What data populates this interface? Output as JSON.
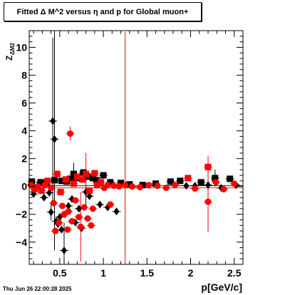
{
  "header": {
    "title": "Fitted Δ M^2 versus η and p for Global muon+"
  },
  "footer": {
    "timestamp": "Thu Jun 26 22:00:28 2025"
  },
  "chart_data": {
    "type": "scatter",
    "title": "Fitted Δ M^2 versus η and p for Global muon+",
    "xlabel": "p[GeV/c]",
    "ylabel": "Z",
    "ylabel_subscript": "ΔM2",
    "xlim": [
      0.15,
      2.6
    ],
    "ylim": [
      -5.6,
      11.2
    ],
    "xticks": [
      0.5,
      1,
      1.5,
      2,
      2.5
    ],
    "xtick_labels": [
      "0.5",
      "1",
      "1.5",
      "2",
      "2.5"
    ],
    "yticks": [
      -4,
      -2,
      0,
      2,
      4,
      6,
      8,
      10
    ],
    "ytick_labels": [
      "−4",
      "−2",
      "0",
      "2",
      "4",
      "6",
      "8",
      "10"
    ],
    "grid": false,
    "reference_line_y": 0,
    "series": [
      {
        "color": "#000000",
        "points": [
          {
            "x": 0.18,
            "y": 0.35,
            "m": "square"
          },
          {
            "x": 0.2,
            "y": -0.55,
            "m": "diamond"
          },
          {
            "x": 0.24,
            "y": 0.0,
            "m": "diamond"
          },
          {
            "x": 0.28,
            "y": 0.3,
            "m": "square"
          },
          {
            "x": 0.32,
            "y": -0.8,
            "m": "diamond"
          },
          {
            "x": 0.35,
            "y": 0.25,
            "m": "square"
          },
          {
            "x": 0.38,
            "y": -0.45,
            "m": "diamond"
          },
          {
            "x": 0.4,
            "y": -1.85,
            "m": "diamond",
            "err": 0.6
          },
          {
            "x": 0.42,
            "y": 4.7,
            "m": "diamond",
            "err": 6.0
          },
          {
            "x": 0.44,
            "y": 3.4,
            "m": "diamond",
            "err": 8.0
          },
          {
            "x": 0.44,
            "y": 0.45,
            "m": "square"
          },
          {
            "x": 0.46,
            "y": -2.5,
            "m": "diamond"
          },
          {
            "x": 0.48,
            "y": -2.7,
            "m": "diamond"
          },
          {
            "x": 0.5,
            "y": -2.2,
            "m": "diamond"
          },
          {
            "x": 0.52,
            "y": -3.1,
            "m": "diamond"
          },
          {
            "x": 0.52,
            "y": 0.4,
            "m": "square"
          },
          {
            "x": 0.55,
            "y": -4.6,
            "m": "diamond",
            "err": 2.0
          },
          {
            "x": 0.56,
            "y": -2.0,
            "m": "diamond"
          },
          {
            "x": 0.58,
            "y": 0.35,
            "m": "square"
          },
          {
            "x": 0.6,
            "y": -1.4,
            "m": "diamond"
          },
          {
            "x": 0.62,
            "y": 0.55,
            "m": "square"
          },
          {
            "x": 0.64,
            "y": -0.9,
            "m": "diamond"
          },
          {
            "x": 0.66,
            "y": 0.9,
            "m": "square",
            "err": 0.8
          },
          {
            "x": 0.68,
            "y": -2.6,
            "m": "diamond"
          },
          {
            "x": 0.7,
            "y": 0.6,
            "m": "square"
          },
          {
            "x": 0.72,
            "y": -1.6,
            "m": "diamond"
          },
          {
            "x": 0.75,
            "y": -3.0,
            "m": "diamond"
          },
          {
            "x": 0.77,
            "y": 1.0,
            "m": "square"
          },
          {
            "x": 0.8,
            "y": -0.4,
            "m": "diamond",
            "err": 1.2
          },
          {
            "x": 0.82,
            "y": 0.7,
            "m": "square"
          },
          {
            "x": 0.84,
            "y": -0.7,
            "m": "diamond"
          },
          {
            "x": 0.88,
            "y": 0.6,
            "m": "square"
          },
          {
            "x": 0.92,
            "y": 0.45,
            "m": "square"
          },
          {
            "x": 0.96,
            "y": -1.3,
            "m": "diamond"
          },
          {
            "x": 1.0,
            "y": 0.8,
            "m": "square"
          },
          {
            "x": 1.05,
            "y": -1.5,
            "m": "diamond"
          },
          {
            "x": 1.08,
            "y": 0.3,
            "m": "square"
          },
          {
            "x": 1.15,
            "y": -1.8,
            "m": "diamond"
          },
          {
            "x": 1.2,
            "y": 0.25,
            "m": "square"
          },
          {
            "x": 1.3,
            "y": 0.15,
            "m": "square"
          },
          {
            "x": 1.45,
            "y": 0.1,
            "m": "square"
          },
          {
            "x": 1.6,
            "y": 0.2,
            "m": "square"
          },
          {
            "x": 1.77,
            "y": 0.35,
            "m": "square"
          },
          {
            "x": 1.88,
            "y": 0.4,
            "m": "square"
          },
          {
            "x": 1.95,
            "y": 0.05,
            "m": "diamond"
          },
          {
            "x": 2.05,
            "y": 0.05,
            "m": "diamond"
          },
          {
            "x": 2.12,
            "y": 0.3,
            "m": "square"
          },
          {
            "x": 2.2,
            "y": 0.1,
            "m": "diamond"
          },
          {
            "x": 2.28,
            "y": 0.6,
            "m": "square",
            "err": 0.6
          },
          {
            "x": 2.35,
            "y": -0.1,
            "m": "diamond"
          },
          {
            "x": 2.45,
            "y": 0.55,
            "m": "square"
          },
          {
            "x": 2.52,
            "y": 0.1,
            "m": "diamond"
          }
        ]
      },
      {
        "color": "#ff0000",
        "points": [
          {
            "x": 0.17,
            "y": 0.1,
            "m": "circle"
          },
          {
            "x": 0.21,
            "y": -0.2,
            "m": "square"
          },
          {
            "x": 0.25,
            "y": 0.0,
            "m": "circle"
          },
          {
            "x": 0.29,
            "y": -0.3,
            "m": "square"
          },
          {
            "x": 0.33,
            "y": 0.1,
            "m": "circle"
          },
          {
            "x": 0.36,
            "y": 0.4,
            "m": "square"
          },
          {
            "x": 0.4,
            "y": -0.1,
            "m": "circle"
          },
          {
            "x": 0.43,
            "y": -1.2,
            "m": "circle"
          },
          {
            "x": 0.45,
            "y": -3.2,
            "m": "circle"
          },
          {
            "x": 0.47,
            "y": 0.9,
            "m": "square"
          },
          {
            "x": 0.49,
            "y": -2.6,
            "m": "circle"
          },
          {
            "x": 0.51,
            "y": -0.4,
            "m": "square"
          },
          {
            "x": 0.53,
            "y": -1.4,
            "m": "circle"
          },
          {
            "x": 0.55,
            "y": -2.0,
            "m": "circle"
          },
          {
            "x": 0.57,
            "y": 0.5,
            "m": "square"
          },
          {
            "x": 0.59,
            "y": -3.1,
            "m": "circle"
          },
          {
            "x": 0.6,
            "y": -1.8,
            "m": "circle"
          },
          {
            "x": 0.62,
            "y": 3.8,
            "m": "circle",
            "err": 0.5
          },
          {
            "x": 0.64,
            "y": -2.5,
            "m": "circle"
          },
          {
            "x": 0.66,
            "y": 0.2,
            "m": "square"
          },
          {
            "x": 0.68,
            "y": -1.0,
            "m": "circle"
          },
          {
            "x": 0.7,
            "y": 0.7,
            "m": "square"
          },
          {
            "x": 0.72,
            "y": -2.2,
            "m": "circle"
          },
          {
            "x": 0.74,
            "y": -2.9,
            "m": "circle",
            "err": 2.5
          },
          {
            "x": 0.76,
            "y": 0.5,
            "m": "square"
          },
          {
            "x": 0.78,
            "y": -1.5,
            "m": "circle"
          },
          {
            "x": 0.8,
            "y": 0.9,
            "m": "square",
            "err": 1.5
          },
          {
            "x": 0.82,
            "y": -2.3,
            "m": "circle"
          },
          {
            "x": 0.84,
            "y": -0.3,
            "m": "square"
          },
          {
            "x": 0.86,
            "y": -2.8,
            "m": "circle"
          },
          {
            "x": 0.88,
            "y": -1.6,
            "m": "circle"
          },
          {
            "x": 0.9,
            "y": 0.95,
            "m": "square"
          },
          {
            "x": 0.93,
            "y": 0.1,
            "m": "square"
          },
          {
            "x": 0.97,
            "y": 0.3,
            "m": "square"
          },
          {
            "x": 1.01,
            "y": -0.1,
            "m": "circle"
          },
          {
            "x": 1.05,
            "y": 0.1,
            "m": "circle"
          },
          {
            "x": 1.08,
            "y": -1.3,
            "m": "circle"
          },
          {
            "x": 1.12,
            "y": 0.05,
            "m": "circle"
          },
          {
            "x": 1.18,
            "y": 0.0,
            "m": "circle"
          },
          {
            "x": 1.25,
            "y": 0.1,
            "m": "circle",
            "err": 11.0
          },
          {
            "x": 1.33,
            "y": 0.0,
            "m": "circle"
          },
          {
            "x": 1.42,
            "y": -0.05,
            "m": "circle"
          },
          {
            "x": 1.52,
            "y": 0.1,
            "m": "circle"
          },
          {
            "x": 1.62,
            "y": 0.05,
            "m": "circle"
          },
          {
            "x": 1.72,
            "y": -0.1,
            "m": "circle"
          },
          {
            "x": 1.82,
            "y": 0.1,
            "m": "circle"
          },
          {
            "x": 1.97,
            "y": 0.6,
            "m": "square"
          },
          {
            "x": 2.05,
            "y": -0.15,
            "m": "circle"
          },
          {
            "x": 2.2,
            "y": 1.4,
            "m": "square",
            "err": 0.8
          },
          {
            "x": 2.2,
            "y": -1.1,
            "m": "circle",
            "err": 2.2
          },
          {
            "x": 2.29,
            "y": 0.3,
            "m": "circle"
          },
          {
            "x": 2.38,
            "y": -0.2,
            "m": "circle"
          },
          {
            "x": 2.5,
            "y": 0.2,
            "m": "circle"
          }
        ]
      }
    ]
  }
}
